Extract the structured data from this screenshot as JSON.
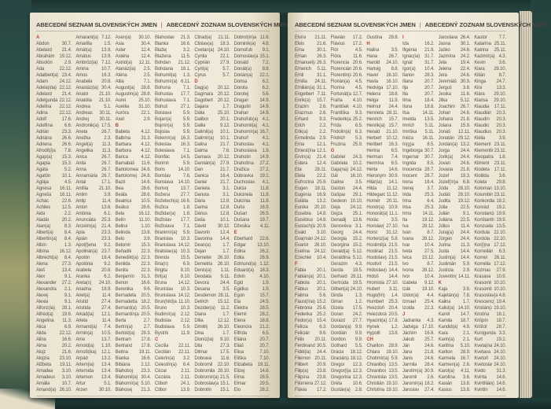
{
  "header": {
    "left": "ABECEDNÍ SEZNAM SLOVENSKÝCH JMEN",
    "divider": "|",
    "right": "ABECEDNÝ ZOZNAM SLOVENSKÝCH MIEN"
  },
  "colors": {
    "cover": "#2b4a45",
    "paper": "#f3edde",
    "accent_red": "#b5443b",
    "text": "#5a564e"
  },
  "pages": [
    {
      "columns": [
        [
          "#A",
          "Abdon|30.7.",
          "Abelard|21.4.",
          "Abrahám|19.12.",
          "Absolón|2.9.",
          "Ada|22.12.",
          "Adalbert(a)|23.4.",
          "Adam|24.12.",
          "Adela(ida)|22.12.",
          "Adelard|21.4.",
          "Adelgunda|22.12.",
          "Adelína|22.12.",
          "Adina|22.12.",
          "Adolf|17.6.",
          "Adolfína|6.6.",
          "Adrián|23.3.",
          "Adriána|26.6.",
          "Adriena|26.6.",
          "Afrodít(i)a|7.8.",
          "Agap(a)|15.3.",
          "Agapia|15.3.",
          "Agáta|5.2.",
          "Agatón|10.1.",
          "Aglája|4.5.",
          "Agnesa|16.11.",
          "Agneša|16.11.",
          "Achác|22.6.",
          "Achiles|12.5.",
          "Aida|2.2.",
          "Aladár|20.2.",
          "Alan(a)|8.3.",
          "Albert(a)|8.4.",
          "Albertín(a)|8.4.",
          "Albín|1.3.",
          "Albína|16.12.",
          "Albrecht(a)|8.4.",
          "Alena|27.3.",
          "Aleš|13.4.",
          "Alex|9.1.",
          "Alexander|27.2.",
          "Alexandra|2.1.",
          "Alexej|9.1.",
          "Alexia|9.1.",
          "Alfonz(ia)|28.1.",
          "Alfréd(a)|19.6.",
          "Angelína|11.3.",
          "Alica|6.9.",
          "Alida|22.12.",
          "Alina|16.6.",
          "Alma|20.2.",
          "Alojz|21.6.",
          "Alojzia|23.10.",
          "Alžbeta|19.11.",
          "Amadea|3.10.",
          "Amadeus|3.10.",
          "Amália|10.7.",
          "Amand(a)|26.10."
        ],
        [
          "Amarant(a)|7.12.",
          "Amarilla|1.5.",
          "Amát(a)|13.9.",
          "Amátus|13.9.",
          "Ambróz(ia)|7.12.",
          "Amina|10.7.",
          "Amos|16.3.",
          "Anabela|20.8.",
          "Anastáz(ia)|30.4.",
          "Anatol|21.10.",
          "Anatólia|21.10.",
          "Andrea|5.1.",
          "Andreas|30.11.",
          "Andrej|30.11.",
          "Andronik(a)|17.5.",
          "Aneta|26.7.",
          "Anežka|2.3.",
          "Angel(a)|11.3.",
          "Angelika|11.3.",
          "Anica|26.7.",
          "Anita|26.7.",
          "Anna|26.7.",
          "Annamária|26.7.",
          "Antal|17.1.",
          "Antília|21.10.",
          "Antim|3.9.",
          "Antip|11.4.",
          "Anton|13.6.",
          "Antónia|6.1.",
          "Anunciáta|25.3.",
          "Anzelm(a)|21.4.",
          "Apia|23.3.",
          "Apián|23.3.",
          "Apol(l)ena|9.2.",
          "Apolinár(a)|23.7.",
          "Apolón|18.4.",
          "Apolónia|9.2.",
          "Arabela|20.8.",
          "Aranka|6.2.",
          "Areta(s)|24.10.",
          "Ariadna|18.9.",
          "Ariel(a)|11.4.",
          "Aristid|27.4.",
          "Aristida|27.4.",
          "Arkád(ia)|12.1.",
          "Arleta|11.4.",
          "Armand(a)|7.4.",
          "Armin(a)|10.5.",
          "Arne|13.7.",
          "Arnold(a)|1.10.",
          "Arnošt(ka)|12.1.",
          "Arpád|13.2.",
          "Artem(ia)|13.4.",
          "Artemida|13.4.",
          "Artemon|13.4.",
          "Artur|5.1.",
          "Arzen|30.10."
        ],
        [
          "Asen(a)|30.10.",
          "Asia|30.4.",
          "Aster|12.4.",
          "Astéria|12.4.",
          "Astrid(a)|12.11.",
          "Atanáz(ia)|2.5.",
          "Aténa|2.5.",
          "Atila|7.1.",
          "August(a)|28.8.",
          "Augustín(a)|28.8.",
          "Aurel|25.10.",
          "Aurélia|31.10.",
          "Auróra|22.1.",
          "Axel|2.9.",
          "#B",
          "Babeta|4.12.",
          "Balbína|31.3.",
          "Barbara|4.12.",
          "Barbora|4.12.",
          "Barica|4.12.",
          "Barnabáš|11.6.",
          "Bartolomea|24.8.",
          "Bartolomej|24.8.",
          "Bazil|14.6.",
          "Bea|28.6.",
          "Beáta|28.6.",
          "Beatrica|10.5.",
          "Beátus|28.6.",
          "Bela|16.12.",
          "Belín|11.10.",
          "Belina|1.10.",
          "Belinda|13.8.",
          "Belo|3.9.",
          "Belomír|15.3.",
          "Beňadik|22.3.",
          "Benedikt(a)|22.3.",
          "Benilda|22.3.",
          "Benita|22.3.",
          "Benjamín|31.3.",
          "Benon|16.6.",
          "Berenika|9.6.",
          "Bernadeta|20.5.",
          "Bernadetta|18.2.",
          "Bernard(a)|20.5.",
          "Bernardín(a)|20.5.",
          "Berta|2.7.",
          "Bertín(a)|2.7.",
          "Bertold(a)|29.3.",
          "Bertram|17.8.",
          "Bertrand|17.8.",
          "Betina|19.11.",
          "Bianka|16.6.",
          "Bibiána|2.12.",
          "Blahoboj|23.3.",
          "Blahomil(a)|30.4.",
          "Blahomír(a)|5.10.",
          "Blahosej|21.3."
        ],
        [
          "Blahoslav|21.3.",
          "Blanka|16.6.",
          "Blažej|3.2.",
          "Blažena|11.5.",
          "Bohdan|21.12.",
          "Bohdana|18.1.",
          "Bohumil(a)|1.3.",
          "Bohumír(a)|6.11.",
          "Bohuna|7.1.",
          "Bohuslav|17.7.",
          "Bohuslava|7.1.",
          "Bohuš|27.1.",
          "Boislava|5.9.",
          "Bojan(a)|5.9.",
          "Bojmír(a)|5.9.",
          "Bojislav|5.9.",
          "Bolemír(a)|16.3.",
          "Boleslav|16.3.",
          "Boleslava|7.1.",
          "Bonifác|14.5.",
          "Borimír|5.9.",
          "Boris|14.10.",
          "Borislav|7.6.",
          "Borislava|14.10.",
          "Borivoj|13.7.",
          "Božena|27.7.",
          "Božetech(a)|16.6.",
          "Božica|1.8.",
          "Božidar(a)|1.8.",
          "Božislav|17.7.",
          "Božislava|7.1.",
          "Branimír(a)|5.9.",
          "Branislav|10.3.",
          "Branislava|14.12.",
          "Bratislav(a)|10.3.",
          "Brenda|15.5.",
          "Bria(n)|6.9.",
          "Brigita|8.10.",
          "Brit(a)|8.10.",
          "Bruna|14.12.",
          "Brunislav|10.3.",
          "Brunislava|14.12.",
          "Brun(hild)a|11.10.",
          "Bruno|10.3.",
          "Budimír(a)|2.12.",
          "Budislav|2.12.",
          "Budislava|5.9.",
          "Bystrík|11.9.",
          "#C",
          "Cecília|22.11.",
          "Cecilián|22.11.",
          "Celerín(a)|3.2.",
          "Celestín(a)|6.4.",
          "Cézar|2.11.",
          "Cezária|2.11.",
          "Ctiboh|24.1.",
          "Ctibor|13.9."
        ],
        [
          "Ctirad(a)|21.11.",
          "Ctislav(a)|18.3.",
          "Cvetan(a)|24.10.",
          "Cyntia|22.1.",
          "Cyprián|27.9.",
          "Cyril(a)|5.7.",
          "Cyrus|5.7.",
          "#D",
          "Dag(a)|20.12.",
          "Dagmara|20.12.",
          "Dagobert|20.12.",
          "Dajana|1.7.",
          "Dália|25.10.",
          "Dalibor|20.1.",
          "Dalila|9.12.",
          "Dalimil(a)|10.1.",
          "Dalimír(a)|10.1.",
          "Dalina|21.7.",
          "Dalma|7.6.",
          "Damara|20.12.",
          "Damián(a)|27.9.",
          "Dan|21.7.",
          "Danica|16.4.",
          "Daniel|21.7.",
          "Daniela|3.1.",
          "Danuta|3.1.",
          "Dária|12.8.",
          "Darina|12.8.",
          "Dárius|12.8.",
          "Daša|10.1.",
          "Dávid|30.12.",
          "Davorin|12.4.",
          "Davorina|14.4.",
          "Dean(a)|1.7.",
          "Dejan|1.7.",
          "Demeter|26.10.",
          "Demetria|26.10.",
          "Denis(a)|1.11.",
          "Deodata|9.11.",
          "Devora|24.4.",
          "Desana|3.5.",
          "Desdemona|28.11.",
          "Detrich|15.12.",
          "Dezider(a)|11.2.",
          "Diana|1.7.",
          "Dília|12.12.",
          "Dimitrij|26.10.",
          "Dina|1.7.",
          "Dioníz(ia)|9.10.",
          "Dita|27.3.",
          "Ditmar|17.5.",
          "Dobrava|11.6.",
          "Dobromil|22.10.",
          "Dobromila|28.10.",
          "Dobromír(a)|21.5.",
          "Dobroslav(a)|15.1.",
          "Dobrotín|15.1."
        ],
        [
          "Dobrot(in)a|11.6.",
          "Dominik(a)|4.8.",
          "Domoľub|9.1.",
          "Domoslav(a)|15.1.",
          "Donald|7.2.",
          "Donát(a)|8.8.",
          "Dorián(a)|22.1.",
          "Dorisa|6.2.",
          "Dorota|6.2.",
          "Dorotej|5.6.",
          "Dragan|14.9.",
          "Dragutín|14.9.",
          "Drahan|14.9.",
          "Drahoľub(a)|4.1.",
          "Drahomil(a)|4.1.",
          "Drahomír(a)|16.7.",
          "Drahoň|4.1.",
          "Drahoslav|4.1.",
          "Drahoslava|1.9.",
          "Drahotín|14.9.",
          "Drahotína|27.2.",
          "Dražica|27.2.",
          "Dúbravka|19.1.",
          "Duchoslav|4.1.",
          "Dulcia|11.8.",
          "Dulcinela|11.8.",
          "Dulcínia|11.8.",
          "Duňa|16.9.",
          "Dušan|26.5.",
          "Dušana|19.7.",
          "Džesika|4.11.",
          "#E",
          "Eberhard|22.6.",
          "Edgar|13.10.",
          "Edina|26.2.",
          "Edita|26.9.",
          "Edmund(a)|1.12.",
          "Eduard(a)|18.3.",
          "Edvin|4.10.",
          "Egid|1.9.",
          "Egidius|1.9.",
          "Egon|15.7.",
          "Ela|24.5.",
          "Elektra|28.5.",
          "Elemír|28.2.",
          "Elena|18.8.",
          "Eleonóra|21.2.",
          "Elfrída|6.5.",
          "Eliána|20.7.",
          "Eliáš|20.7.",
          "Elisa|7.10.",
          "Eliška|7.10.",
          "Elizabeta|19.11.",
          "Elizej|14.6.",
          "Elma|28.5.",
          "Elmar|29.5.",
          "Elo|28.2."
        ]
      ]
    },
    {
      "columns": [
        [
          "Elvíra|21.11.",
          "Elvis|21.6.",
          "Ema|30.1.",
          "Eman|26.3.",
          "Emanuel(a)|26.3.",
          "Emerich|5.11.",
          "Emil|31.1.",
          "Emília|24.11.",
          "Emilián(a)|31.1.",
          "Engelbert|7.11.",
          "Enrik(a)|15.7.",
          "Erazim|2.6.",
          "Erazmus|2.6.",
          "Erhard|9.3.",
          "Erich|2.2.",
          "Erik(a)|2.2.",
          "Ermelinda|2.9.",
          "Erna|12.1.",
          "Ernest(ína)|12.1.",
          "Ervín(a)|21.4.",
          "Estera|12.4.",
          "Eta|28.11.",
          "Etela|22.2.",
          "Eufrozína|25.9.",
          "Eugen|18.11.",
          "Eugénia|16.9.",
          "Eulália|13.2.",
          "Eunika|20.10.",
          "Eusébia|14.8.",
          "Eusébius|14.8.",
          "Eustach(ia)|20.9.",
          "Evald|3.10.",
          "Eva(mária)|24.12.",
          "Evarist|26.10.",
          "Evelína|24.12.",
          "Ezechiel|10.4.",
          "#F",
          "Fábia|20.1.",
          "Fabián(a)|20.1.",
          "Fabiola|20.1.",
          "Fábius|20.1.",
          "Fatima|5.6.",
          "Faust(ína)|15.2.",
          "Febrónia|25.6.",
          "Federika|25.2.",
          "Fedor(a)|15.4.",
          "Felícia|6.3.",
          "Felicián|9.6.",
          "Félix|20.11.",
          "Ferdinand(a)|30.5.",
          "Fidél(ia)|24.4.",
          "Filemon|20.11.",
          "Filibert|20.9.",
          "Filip(a)|23.8.",
          "Filipína|23.8.",
          "Filoména|27.12.",
          "Flávia|17.2."
        ],
        [
          "Flavián|17.2.",
          "Flávius|17.2.",
          "Flór|4.5.",
          "Flóra|11.6.",
          "Florencia|20.6.",
          "Florencián|20.6.",
          "Florentín(a)|20.6.",
          "Florián(a)|4.5.",
          "Florína|4.5.",
          "Fortunát(a)|12.7.",
          "Fraňa|4.10.",
          "František|4.10.",
          "Františka|9.3.",
          "Frederik(a)|25.2.",
          "Frída|6.5.",
          "Fridolín(a)|6.3.",
          "Fridrich|5.3.",
          "Fruzina|25.9.",
          "#G",
          "Gabriel|24.3.",
          "Gabriela|10.2.",
          "Gaja(na)|24.12.",
          "Gál|16.10.",
          "Galina|3.5.",
          "Gaston|24.4.",
          "Gašpar|29.1.",
          "Gedeon|10.10.",
          "Geja|24.12.",
          "Gejza|25.1.",
          "Genadij|13.6.",
          "Genovéva|3.1.",
          "Georg|24.4.",
          "Georgia|15.2.",
          "Georgína|15.2.",
          "Gerald(a)|5.12.",
          "Geraldína|5.12.",
          "Gerazim|4.3.",
          "Gerda|19.5.",
          "Gerhard|28.11.",
          "Gertrúda|19.5.",
          "Gilbert(a)|24.10.",
          "Ginda|1.3.",
          "Girran|1.2.",
          "Gizela|17.5.",
          "Goran|24.2.",
          "Gorazd|27.7.",
          "Gordan(a)|9.9.",
          "Gordián|9.9.",
          "Gordon|9.9.",
          "Gothard|5.5.",
          "Grácia|18.12.",
          "Gracián(a)|18.12.",
          "Gregor|12.3.",
          "Gregor(i)a|12.3.",
          "Gregorína|12.3.",
          "Gréta|10.6.",
          "Gustáv(a)|2.8."
        ],
        [
          "Gustína|28.8.",
          "#H",
          "Halina|3.5.",
          "Hana|26.7.",
          "Harold|24.10.",
          "Hartvig|8.8.",
          "Havel|16.10.",
          "Havla|16.10.",
          "Hedviga|17.10.",
          "Helena|18.8.",
          "Helga|11.9.",
          "Helmut|24.4.",
          "Henrieta|28.11.",
          "Henrich|15.7.",
          "Henrik(a)|15.7.",
          "Herald|21.10.",
          "Herbert|10.12.",
          "Heribert|16.3.",
          "Herina|6.5.",
          "Herman|7.4.",
          "Hermína|6.5.",
          "Herta|14.6.",
          "Hieronym|30.9.",
          "Hilár(ia)|14.1.",
          "Hilda|11.12.",
          "Hildegard(a)|11.12.",
          "Homér|20.11.",
          "Honór(a)|10.9.",
          "Honorát(a)|11.1.",
          "Horác|3.5.",
          "Horislav(a)|27.10.",
          "Horst|31.12.",
          "Hortenz(ia)|5.8.",
          "Hostimil(a)|21.5.",
          "Hostirad|21.5.",
          "Hostislav(a)|21.5.",
          "Hostivít|21.5.",
          "Hrdoslav(a)|14.4.",
          "Hrdoš|14.4.",
          "Hromislav(a)|27.10.",
          "Hubert|3.11.",
          "Hugo(lín)|1.4.",
          "Humbert|25.3.",
          "Hvezdoň|20.4.",
          "Hviezdoslav(a)|20.5.",
          "Hyacint(a)|17.8.",
          "Hynek|1.2.",
          "Hypolit|13.8.",
          "#CH",
          "Chariton|28.9.",
          "Chiara|19.10.",
          "Chotimír(a)|5.9.",
          "Chraniboj|13.5.",
          "Chranibor|13.5.",
          "Chranislav(a)|13.5.",
          "Christián(a)|19.10.",
          "Christína|19.10."
        ],
        [
          "#I",
          "Ida|16.2.",
          "Ifigénia|21.9.",
          "Ignác(ia)|31.7.",
          "Ignát|31.7.",
          "Igor(a)|10.4.",
          "Ilarion|28.3.",
          "Iliana|20.7.",
          "Ilja|20.7.",
          "Ília|20.7.",
          "Ilma|18.4.",
          "Ilona|18.8.",
          "Ilsa|14.11.",
          "Imelda|13.5.",
          "Imrich|5.11.",
          "Imriška|5.11.",
          "Inéza|16.11.",
          "In(g)a|8.5.",
          "Ingeborga|30.7.",
          "Ingemar|30.7.",
          "Ingrida|8.5.",
          "Inocencia|28.7.",
          "Inocent|28.7.",
          "Irena|16.4.",
          "Irenej|3.7.",
          "Irida|25.3.",
          "Irina|6.4.",
          "Irisa|25.3.",
          "Irma|14.11.",
          "Ita|19.12.",
          "Iva|28.12.",
          "Ivan|8.7.",
          "Ivana|28.12.",
          "Ivar|10.4.",
          "Iveta|27.5.",
          "Ivica|15.12.",
          "Ivo|8.7.",
          "Ivona|28.12.",
          "Ivor|10.4.",
          "Izabela|9.12.",
          "Izák|19.10.",
          "Izidor(a)|4.4.",
          "Izmael|25.4.",
          "Izolda|22.3.",
          "#J",
          "Jadranka|4.3.",
          "Jadviga|17.10.",
          "Jáchim|16.8.",
          "Jakub|25.7.",
          "Ján|24.6.",
          "Jana|21.8.",
          "Janis|24.6.",
          "Jarmila|28.4.",
          "Jarolím(a)|30.9.",
          "Jaromil|2.6.",
          "Jaromír(a)|18.2.",
          "Jaroslav|27.4."
        ],
        [
          "Jaroslava|26.4.",
          "Jasna|30.1.",
          "Jaško|24.6.",
          "Jazmína|24.2.",
          "Jela|19.4.",
          "Jelena|22.4.",
          "Jera|24.6.",
          "Jeremiáš|30.9.",
          "Jerguš|3.8.",
          "Jesika|11.6.",
          "Jitka|5.12.",
          "Joachim|26.7.",
          "Johan|24.6.",
          "Johana|21.8.",
          "Jolana|15.9.",
          "Jonáš|12.11.",
          "Jonatán|29.12.",
          "Jordán(a)|13.2.",
          "Jorga|24.4.",
          "Jorik(a)|24.4.",
          "Jovan|24.6.",
          "Jovana|21.8.",
          "Jozef|19.3.",
          "Jozef(ín)a|6.8.",
          "Júda|28.10.",
          "Judáš|28.10.",
          "Judita|19.12.",
          "Júlia|22.5.",
          "Julián|9.1.",
          "Juliána|22.5.",
          "Július|11.4.",
          "Juraj(a)|24.4.",
          "Jürgen|24.4.",
          "Jurina|11.3.",
          "Justa|14.4.",
          "Justín(a)|14.4.",
          "Justinián|5.9.",
          "Justícia|2.9.",
          "Juventín(a)|14.11.",
          "#K",
          "Kaja|3.6.",
          "Kajetán(a)|7.8.",
          "Kalina|1.7.",
          "Kalist(a)|14.10.",
          "Kamil|14.7.",
          "Kamila|18.7.",
          "Kandid(a)|4.9.",
          "Kara|2.1.",
          "Karin(a)|2.1.",
          "Karitína|5.10.",
          "Kariton|28.9.",
          "Karmela|16.7.",
          "Karmen(a)|2.6.",
          "Karol(a)|4.11.",
          "Karolína|3.6.",
          "Kasián|13.8.",
          "Kasius|13.8."
        ],
        [
          "Kastor|7.7.",
          "Katarína|25.11.",
          "Katrina|25.11.",
          "Kazimír(a)|4.3.",
          "Kevin|3.6.",
          "Kiara|29.10.",
          "Kilián|8.7.",
          "Kinga|24.7.",
          "Kira|13.3.",
          "Klára|29.10.",
          "Klarisa|29.10.",
          "Klaudia|17.11.",
          "Klaudián|20.3.",
          "Klaudín|20.3.",
          "Klaudio|20.3.",
          "Klaudius|20.3.",
          "Klélia|3.9.",
          "Klement|23.11.",
          "Klementín(a)|23.11.",
          "Kleopatra|1.8.",
          "Kliment|23.11.",
          "Klodeta|17.11.",
          "Klotilda|3.6.",
          "Koleta|29.8.",
          "Koloman|13.10.",
          "Kolumbín(a)|23.11.",
          "Konkordia|18.2.",
          "Konrád|19.2.",
          "Konstancia|19.9.",
          "Konštantín(a)|19.9.",
          "Konzuela|13.5.",
          "Kordula|22.10.",
          "Kordúla|22.10.",
          "Kor(i)na|17.12.",
          "Kornelián|6.3.",
          "Kornel|26.11.",
          "Kornélia|17.12.",
          "Kozmas|27.9.",
          "Krasava|10.9.",
          "Krasomil|10.10.",
          "Krasomila|10.10.",
          "Krasoslav(a)|4.8.",
          "Krescenc(ia)|19.4.",
          "Kristián(a)|19.10.",
          "Kristína|16.1.",
          "Krišpín|18.7.",
          "Krištof|28.7.",
          "Kunigunda|3.3.",
          "Kurt|19.2.",
          "Kveta(na)|24.10.",
          "Kvetava|24.10.",
          "Kvetoň|24.10.",
          "Kvetoslav(a)|24.10.",
          "Kvido|31.3.",
          "Kvinta|14.6.",
          "Kvintílián(a)|14.6.",
          "Kvintín|14.6."
        ]
      ]
    }
  ]
}
